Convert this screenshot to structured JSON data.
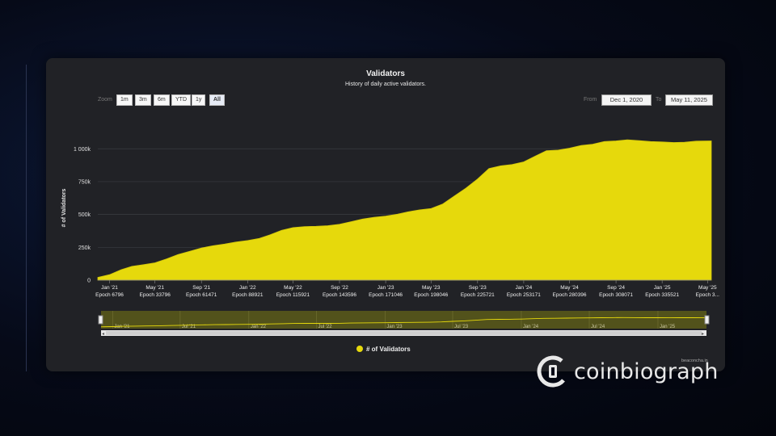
{
  "chart_data": {
    "type": "area",
    "title": "Validators",
    "subtitle": "History of daily active validators.",
    "ylabel": "# of Validators",
    "ylim": [
      0,
      1100000
    ],
    "y_ticks": [
      0,
      250000,
      500000,
      750000,
      1000000
    ],
    "y_tick_labels": [
      "0",
      "250k",
      "500k",
      "750k",
      "1 000k"
    ],
    "x_ticks": [
      {
        "date": "2021-01-01",
        "label": "Jan '21",
        "sublabel": "Epoch 6796"
      },
      {
        "date": "2021-05-01",
        "label": "May '21",
        "sublabel": "Epoch 33796"
      },
      {
        "date": "2021-09-01",
        "label": "Sep '21",
        "sublabel": "Epoch 61471"
      },
      {
        "date": "2022-01-01",
        "label": "Jan '22",
        "sublabel": "Epoch 88921"
      },
      {
        "date": "2022-05-01",
        "label": "May '22",
        "sublabel": "Epoch 115921"
      },
      {
        "date": "2022-09-01",
        "label": "Sep '22",
        "sublabel": "Epoch 143596"
      },
      {
        "date": "2023-01-01",
        "label": "Jan '23",
        "sublabel": "Epoch 171046"
      },
      {
        "date": "2023-05-01",
        "label": "May '23",
        "sublabel": "Epoch 198046"
      },
      {
        "date": "2023-09-01",
        "label": "Sep '23",
        "sublabel": "Epoch 225721"
      },
      {
        "date": "2024-01-01",
        "label": "Jan '24",
        "sublabel": "Epoch 253171"
      },
      {
        "date": "2024-05-01",
        "label": "May '24",
        "sublabel": "Epoch 280396"
      },
      {
        "date": "2024-09-01",
        "label": "Sep '24",
        "sublabel": "Epoch 308071"
      },
      {
        "date": "2025-01-01",
        "label": "Jan '25",
        "sublabel": "Epoch 335521"
      },
      {
        "date": "2025-05-01",
        "label": "May '25",
        "sublabel": "Epoch 3..."
      }
    ],
    "navigator_ticks": [
      {
        "date": "2021-01-01",
        "label": "Jan '21"
      },
      {
        "date": "2021-07-01",
        "label": "Jul '21"
      },
      {
        "date": "2022-01-01",
        "label": "Jan '22"
      },
      {
        "date": "2022-07-01",
        "label": "Jul '22"
      },
      {
        "date": "2023-01-01",
        "label": "Jan '23"
      },
      {
        "date": "2023-07-01",
        "label": "Jul '23"
      },
      {
        "date": "2024-01-01",
        "label": "Jan '24"
      },
      {
        "date": "2024-07-01",
        "label": "Jul '24"
      },
      {
        "date": "2025-01-01",
        "label": "Jan '25"
      }
    ],
    "x_range": [
      "2020-12-01",
      "2025-05-11"
    ],
    "series": [
      {
        "name": "# of Validators",
        "color": "#e6d90c",
        "points": [
          [
            "2020-12-01",
            21000
          ],
          [
            "2021-01-01",
            42000
          ],
          [
            "2021-02-01",
            80000
          ],
          [
            "2021-03-01",
            105000
          ],
          [
            "2021-04-01",
            118000
          ],
          [
            "2021-05-01",
            132000
          ],
          [
            "2021-06-01",
            162000
          ],
          [
            "2021-07-01",
            195000
          ],
          [
            "2021-08-01",
            220000
          ],
          [
            "2021-09-01",
            245000
          ],
          [
            "2021-10-01",
            262000
          ],
          [
            "2021-11-01",
            275000
          ],
          [
            "2021-12-01",
            290000
          ],
          [
            "2022-01-01",
            302000
          ],
          [
            "2022-02-01",
            318000
          ],
          [
            "2022-03-01",
            345000
          ],
          [
            "2022-04-01",
            380000
          ],
          [
            "2022-05-01",
            400000
          ],
          [
            "2022-06-01",
            408000
          ],
          [
            "2022-07-01",
            410000
          ],
          [
            "2022-08-01",
            415000
          ],
          [
            "2022-09-01",
            425000
          ],
          [
            "2022-10-01",
            445000
          ],
          [
            "2022-11-01",
            465000
          ],
          [
            "2022-12-01",
            478000
          ],
          [
            "2023-01-01",
            488000
          ],
          [
            "2023-02-01",
            502000
          ],
          [
            "2023-03-01",
            520000
          ],
          [
            "2023-04-01",
            535000
          ],
          [
            "2023-05-01",
            545000
          ],
          [
            "2023-06-01",
            580000
          ],
          [
            "2023-07-01",
            640000
          ],
          [
            "2023-08-01",
            700000
          ],
          [
            "2023-09-01",
            770000
          ],
          [
            "2023-10-01",
            850000
          ],
          [
            "2023-11-01",
            870000
          ],
          [
            "2023-12-01",
            880000
          ],
          [
            "2024-01-01",
            900000
          ],
          [
            "2024-02-01",
            945000
          ],
          [
            "2024-03-01",
            985000
          ],
          [
            "2024-04-01",
            990000
          ],
          [
            "2024-05-01",
            1005000
          ],
          [
            "2024-06-01",
            1025000
          ],
          [
            "2024-07-01",
            1035000
          ],
          [
            "2024-08-01",
            1055000
          ],
          [
            "2024-09-01",
            1060000
          ],
          [
            "2024-10-01",
            1068000
          ],
          [
            "2024-11-01",
            1062000
          ],
          [
            "2024-12-01",
            1055000
          ],
          [
            "2025-01-01",
            1052000
          ],
          [
            "2025-02-01",
            1048000
          ],
          [
            "2025-03-01",
            1050000
          ],
          [
            "2025-04-01",
            1058000
          ],
          [
            "2025-05-11",
            1060000
          ]
        ]
      }
    ],
    "legend": "bottom-center",
    "grid": true
  },
  "controls": {
    "zoom_label": "Zoom",
    "zoom_buttons": [
      "1m",
      "3m",
      "6m",
      "YTD",
      "1y",
      "All"
    ],
    "active_zoom": "All",
    "from_label": "From",
    "from_value": "Dec 1, 2020",
    "to_label": "To",
    "to_value": "May 11, 2025"
  },
  "credit": "beaconcha.in",
  "brand": {
    "name": "coinbiograph"
  },
  "colors": {
    "series": "#e6d90c",
    "panel": "#212226",
    "background": "#060a18"
  }
}
